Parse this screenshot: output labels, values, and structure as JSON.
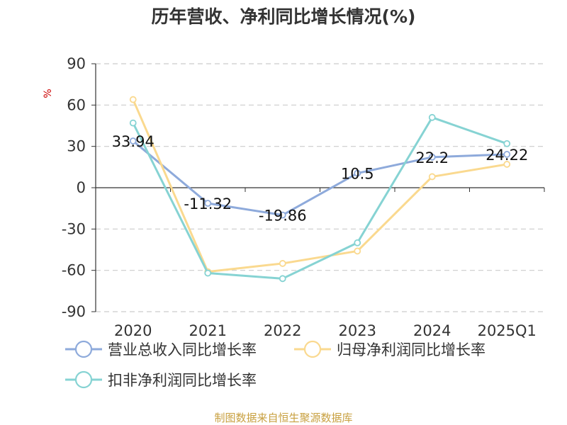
{
  "chart_data": {
    "type": "line",
    "title": "历年营收、净利同比增长情况(%)",
    "ylabel": "%",
    "categories": [
      "2020",
      "2021",
      "2022",
      "2023",
      "2024",
      "2025Q1"
    ],
    "ylim": [
      -90,
      90
    ],
    "yticks": [
      90,
      60,
      30,
      0,
      -30,
      -60,
      -90
    ],
    "grid": true,
    "legend_position": "bottom",
    "series": [
      {
        "name": "营业总收入同比增长率",
        "color": "#8eaadb",
        "values": [
          33.94,
          -11.32,
          -19.86,
          10.5,
          22.2,
          24.22
        ],
        "labels": [
          "33.94",
          "-11.32",
          "-19.86",
          "10.5",
          "22.2",
          "24.22"
        ]
      },
      {
        "name": "归母净利润同比增长率",
        "color": "#fad98f",
        "values": [
          64,
          -61,
          -55,
          -46,
          8,
          17
        ]
      },
      {
        "name": "扣非净利润同比增长率",
        "color": "#86d3d3",
        "values": [
          47,
          -62,
          -66,
          -40,
          51,
          32
        ]
      }
    ],
    "source": "制图数据来自恒生聚源数据库"
  }
}
